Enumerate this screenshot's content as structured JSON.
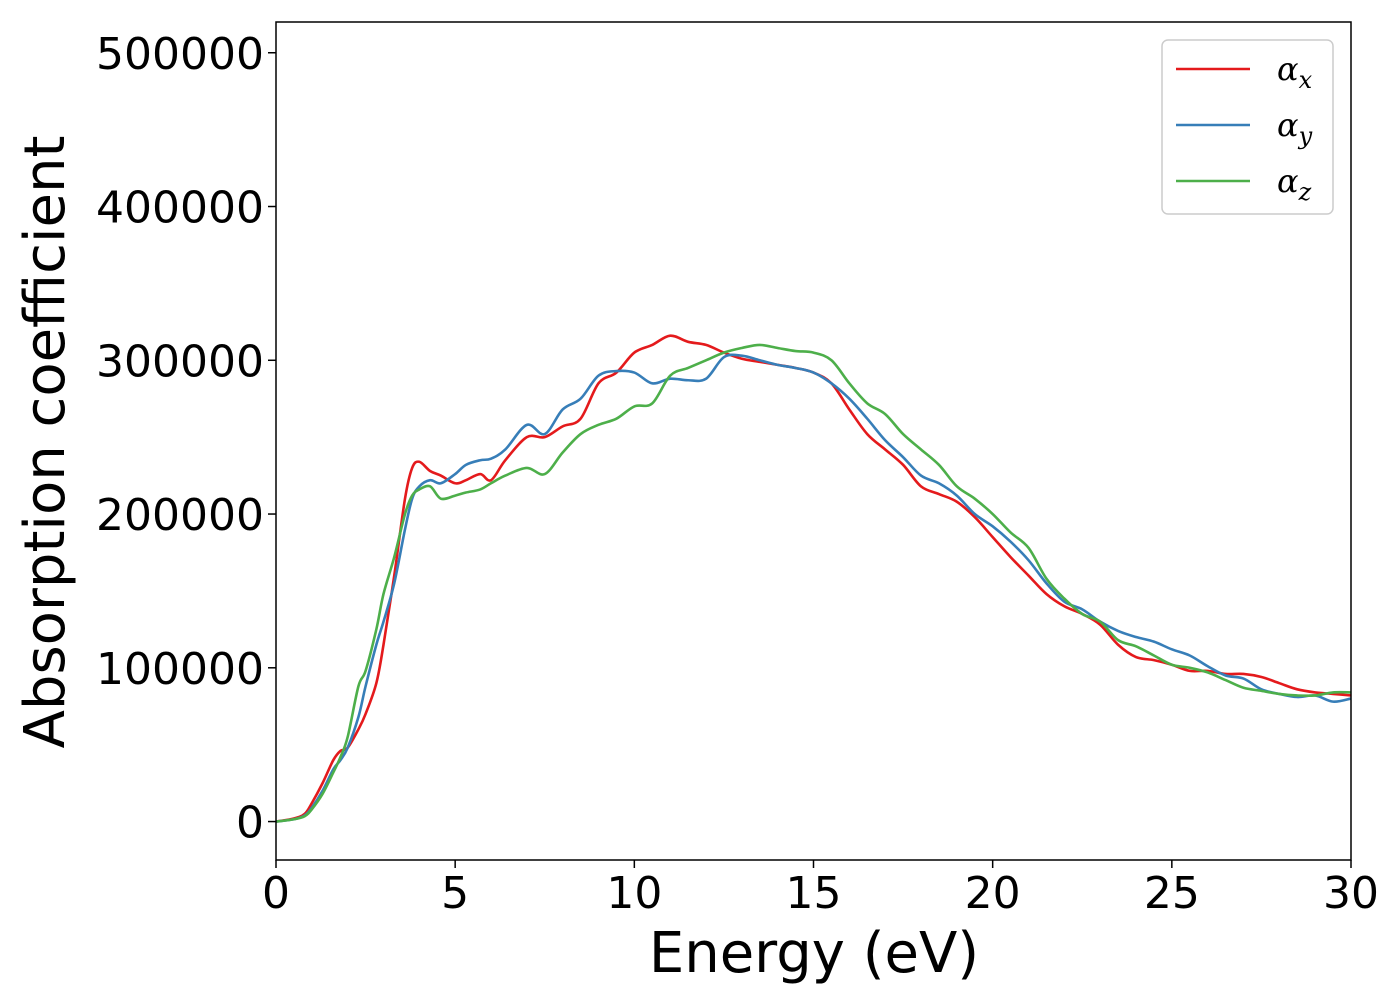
{
  "chart_data": {
    "type": "line",
    "xlabel": "Energy (eV)",
    "ylabel": "Absorption coefficient",
    "xlim": [
      0,
      30
    ],
    "ylim": [
      -25000,
      520000
    ],
    "xticks": [
      0,
      5,
      10,
      15,
      20,
      25,
      30
    ],
    "yticks": [
      0,
      100000,
      200000,
      300000,
      400000,
      500000
    ],
    "xtick_labels": [
      "0",
      "5",
      "10",
      "15",
      "20",
      "25",
      "30"
    ],
    "ytick_labels": [
      "0",
      "100000",
      "200000",
      "300000",
      "400000",
      "500000"
    ],
    "grid": false,
    "legend_position": "top-right",
    "series": [
      {
        "name": "αx",
        "legend_base": "α",
        "legend_sub": "x",
        "color": "#e41a1c",
        "x": [
          0,
          0.5,
          0.8,
          1.0,
          1.3,
          1.6,
          1.8,
          2.0,
          2.3,
          2.5,
          2.8,
          3.0,
          3.3,
          3.6,
          3.8,
          4.0,
          4.3,
          4.6,
          5.0,
          5.3,
          5.7,
          6.0,
          6.4,
          7.0,
          7.5,
          8.0,
          8.5,
          9.0,
          9.5,
          10.0,
          10.5,
          11.0,
          11.5,
          12.0,
          12.5,
          13.0,
          13.5,
          14.0,
          14.5,
          15.0,
          15.5,
          16.0,
          16.5,
          17.0,
          17.5,
          18.0,
          18.5,
          19.0,
          19.5,
          20.0,
          20.5,
          21.0,
          21.5,
          22.0,
          22.5,
          23.0,
          23.5,
          24.0,
          24.5,
          25.0,
          25.5,
          26.0,
          26.5,
          27.0,
          27.5,
          28.0,
          28.5,
          29.0,
          29.5,
          30.0
        ],
        "y": [
          0,
          2000,
          5000,
          12000,
          25000,
          40000,
          46000,
          48000,
          60000,
          70000,
          90000,
          115000,
          160000,
          210000,
          230000,
          234000,
          228000,
          225000,
          220000,
          222000,
          226000,
          222000,
          235000,
          250000,
          250000,
          257000,
          262000,
          285000,
          292000,
          305000,
          310000,
          316000,
          312000,
          310000,
          305000,
          301000,
          299000,
          297000,
          295000,
          292000,
          285000,
          268000,
          252000,
          242000,
          232000,
          218000,
          213000,
          208000,
          198000,
          185000,
          172000,
          160000,
          148000,
          140000,
          135000,
          128000,
          115000,
          107000,
          105000,
          102000,
          98000,
          98000,
          96000,
          96000,
          94000,
          90000,
          86000,
          84000,
          83000,
          82000
        ]
      },
      {
        "name": "αy",
        "legend_base": "α",
        "legend_sub": "y",
        "color": "#377eb8",
        "x": [
          0,
          0.5,
          0.8,
          1.0,
          1.3,
          1.6,
          1.8,
          2.0,
          2.3,
          2.5,
          2.8,
          3.0,
          3.3,
          3.6,
          3.8,
          4.0,
          4.3,
          4.6,
          5.0,
          5.3,
          5.7,
          6.0,
          6.4,
          7.0,
          7.5,
          8.0,
          8.5,
          9.0,
          9.5,
          10.0,
          10.5,
          11.0,
          11.5,
          12.0,
          12.5,
          13.0,
          13.5,
          14.0,
          14.5,
          15.0,
          15.5,
          16.0,
          16.5,
          17.0,
          17.5,
          18.0,
          18.5,
          19.0,
          19.5,
          20.0,
          20.5,
          21.0,
          21.5,
          22.0,
          22.5,
          23.0,
          23.5,
          24.0,
          24.5,
          25.0,
          25.5,
          26.0,
          26.5,
          27.0,
          27.5,
          28.0,
          28.5,
          29.0,
          29.5,
          30.0
        ],
        "y": [
          0,
          1500,
          4000,
          9000,
          20000,
          34000,
          40000,
          48000,
          68000,
          88000,
          115000,
          130000,
          155000,
          190000,
          210000,
          218000,
          222000,
          220000,
          226000,
          232000,
          235000,
          236000,
          242000,
          258000,
          252000,
          268000,
          275000,
          290000,
          293000,
          292000,
          285000,
          288000,
          287000,
          288000,
          302000,
          303000,
          300000,
          297000,
          295000,
          292000,
          285000,
          275000,
          262000,
          248000,
          237000,
          225000,
          220000,
          212000,
          200000,
          192000,
          182000,
          170000,
          155000,
          143000,
          138000,
          130000,
          124000,
          120000,
          117000,
          112000,
          108000,
          101000,
          95000,
          93000,
          86000,
          83000,
          81000,
          82000,
          78000,
          80000
        ]
      },
      {
        "name": "αz",
        "legend_base": "α",
        "legend_sub": "z",
        "color": "#4daf4a",
        "x": [
          0,
          0.5,
          0.8,
          1.0,
          1.3,
          1.6,
          1.8,
          2.0,
          2.3,
          2.5,
          2.8,
          3.0,
          3.3,
          3.6,
          3.8,
          4.0,
          4.3,
          4.6,
          5.0,
          5.3,
          5.7,
          6.0,
          6.4,
          7.0,
          7.5,
          8.0,
          8.5,
          9.0,
          9.5,
          10.0,
          10.5,
          11.0,
          11.5,
          12.0,
          12.5,
          13.0,
          13.5,
          14.0,
          14.5,
          15.0,
          15.5,
          16.0,
          16.5,
          17.0,
          17.5,
          18.0,
          18.5,
          19.0,
          19.5,
          20.0,
          20.5,
          21.0,
          21.5,
          22.0,
          22.5,
          23.0,
          23.5,
          24.0,
          24.5,
          25.0,
          25.5,
          26.0,
          26.5,
          27.0,
          27.5,
          28.0,
          28.5,
          29.0,
          29.5,
          30.0
        ],
        "y": [
          0,
          1500,
          3500,
          8000,
          18000,
          32000,
          42000,
          55000,
          88000,
          98000,
          125000,
          148000,
          172000,
          200000,
          212000,
          216000,
          218000,
          210000,
          212000,
          214000,
          216000,
          220000,
          225000,
          230000,
          226000,
          240000,
          252000,
          258000,
          262000,
          270000,
          272000,
          290000,
          295000,
          300000,
          305000,
          308000,
          310000,
          308000,
          306000,
          305000,
          300000,
          285000,
          272000,
          265000,
          252000,
          242000,
          232000,
          218000,
          210000,
          200000,
          188000,
          178000,
          158000,
          145000,
          135000,
          130000,
          118000,
          114000,
          108000,
          102000,
          100000,
          97000,
          92000,
          87000,
          85000,
          83000,
          82000,
          82000,
          84000,
          84000
        ]
      }
    ]
  }
}
